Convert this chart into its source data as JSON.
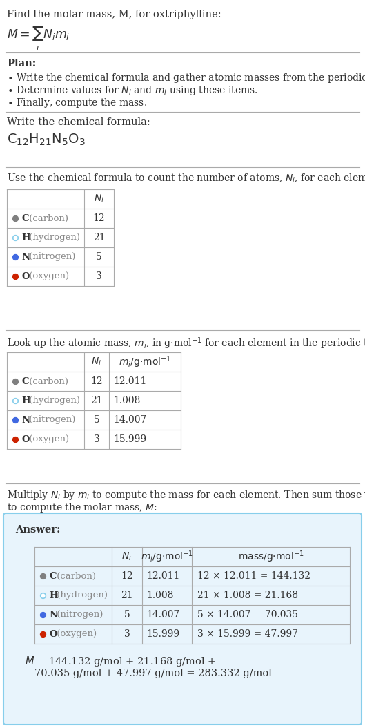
{
  "title_text": "Find the molar mass, M, for oxtriphylline:",
  "elements": [
    "C (carbon)",
    "H (hydrogen)",
    "N (nitrogen)",
    "O (oxygen)"
  ],
  "element_symbols": [
    "C",
    "H",
    "N",
    "O"
  ],
  "element_names": [
    " (carbon)",
    " (hydrogen)",
    " (nitrogen)",
    " (oxygen)"
  ],
  "Ni": [
    12,
    21,
    5,
    3
  ],
  "mi_strs": [
    "12.011",
    "1.008",
    "14.007",
    "15.999"
  ],
  "mass_calcs": [
    "12 × 12.011 = 144.132",
    "21 × 1.008 = 21.168",
    "5 × 14.007 = 70.035",
    "3 × 15.999 = 47.997"
  ],
  "dot_colors": [
    "#808080",
    "#ffffff",
    "#4169E1",
    "#CC2200"
  ],
  "dot_border_colors": [
    "#808080",
    "#87CEEB",
    "#4169E1",
    "#CC2200"
  ],
  "bg_color": "#ffffff",
  "answer_box_color": "#E8F4FC",
  "answer_box_border": "#87CEEB",
  "text_color": "#333333",
  "gray_text_color": "#888888",
  "line_color": "#aaaaaa"
}
